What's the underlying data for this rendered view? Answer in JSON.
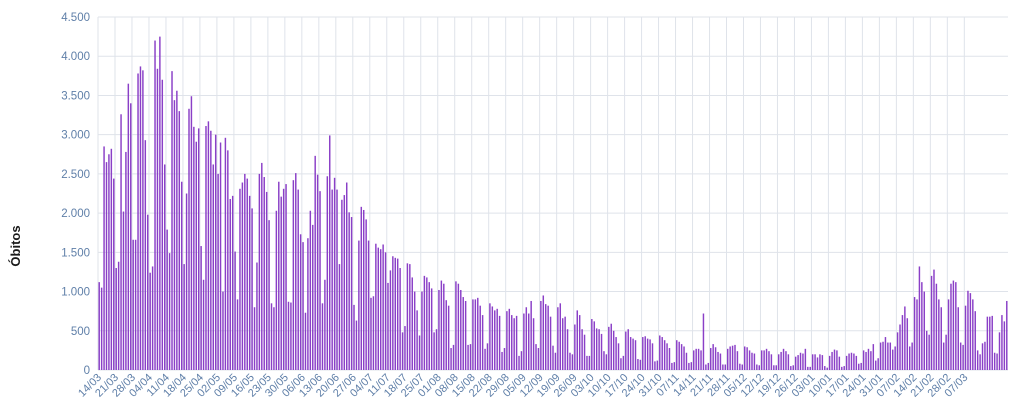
{
  "colors": {
    "bar": "#8a3fc7",
    "grid": "#dfe3ea",
    "axis_text": "#5f7fa8",
    "ylabel": "#1a1a1a",
    "background": "#ffffff"
  },
  "chart_data": {
    "type": "bar",
    "title": "",
    "xlabel": "",
    "ylabel": "Óbitos",
    "ylim": [
      0,
      4500
    ],
    "yticks": [
      0,
      500,
      1000,
      1500,
      2000,
      2500,
      3000,
      3500,
      4000,
      4500
    ],
    "ytick_labels": [
      "0",
      "500",
      "1.000",
      "1.500",
      "2.000",
      "2.500",
      "3.000",
      "3.500",
      "4.000",
      "4.500"
    ],
    "grid": "horizontal and vertical",
    "legend": "none",
    "x_start": "14/03",
    "x_end": "10/03",
    "xtick_labels": [
      "14/03",
      "21/03",
      "28/03",
      "04/04",
      "11/04",
      "18/04",
      "25/04",
      "02/05",
      "09/05",
      "16/05",
      "23/05",
      "30/05",
      "06/06",
      "13/06",
      "20/06",
      "27/06",
      "04/07",
      "11/07",
      "18/07",
      "25/07",
      "01/08",
      "08/08",
      "15/08",
      "22/08",
      "29/08",
      "05/09",
      "12/09",
      "19/09",
      "26/09",
      "03/10",
      "10/10",
      "17/10",
      "24/10",
      "31/10",
      "07/11",
      "14/11",
      "21/11",
      "28/11",
      "05/12",
      "12/12",
      "19/12",
      "26/12",
      "03/01",
      "10/01",
      "17/01",
      "24/01",
      "31/01",
      "07/02",
      "14/02",
      "21/02",
      "28/02",
      "07/03"
    ],
    "values": [
      1120,
      1050,
      2850,
      2650,
      2750,
      2820,
      2440,
      1300,
      1380,
      3260,
      2020,
      2780,
      3650,
      3400,
      1660,
      1660,
      3780,
      3870,
      3820,
      2930,
      1980,
      1240,
      1320,
      4200,
      3840,
      4250,
      3700,
      2620,
      1790,
      1490,
      3810,
      3440,
      3560,
      3300,
      2400,
      1350,
      2250,
      3330,
      3490,
      3100,
      2910,
      3080,
      1580,
      1150,
      3110,
      3170,
      3050,
      2620,
      3000,
      2500,
      2900,
      1000,
      2960,
      2800,
      2180,
      2220,
      1510,
      900,
      2310,
      2390,
      2500,
      2440,
      2220,
      2060,
      800,
      1370,
      2500,
      2640,
      2460,
      2270,
      1910,
      850,
      800,
      2030,
      2400,
      2210,
      2310,
      2370,
      870,
      860,
      2420,
      2510,
      2300,
      1730,
      1630,
      730,
      1680,
      2030,
      1850,
      2730,
      2490,
      2280,
      850,
      1150,
      2470,
      2990,
      2300,
      2450,
      2300,
      1350,
      2170,
      2230,
      2390,
      2010,
      1950,
      830,
      630,
      1650,
      2080,
      2040,
      1920,
      1650,
      920,
      940,
      1610,
      1560,
      1540,
      1600,
      1500,
      1110,
      1270,
      1450,
      1430,
      1420,
      1300,
      480,
      560,
      1360,
      1350,
      1180,
      1000,
      760,
      440,
      1000,
      1200,
      1180,
      1120,
      1040,
      480,
      520,
      1020,
      1140,
      1100,
      890,
      820,
      280,
      320,
      1130,
      1100,
      1020,
      930,
      880,
      320,
      330,
      900,
      900,
      920,
      820,
      700,
      270,
      340,
      850,
      810,
      760,
      780,
      690,
      230,
      280,
      750,
      780,
      700,
      660,
      690,
      180,
      240,
      720,
      800,
      720,
      880,
      660,
      330,
      280,
      880,
      950,
      840,
      820,
      680,
      310,
      220,
      800,
      850,
      660,
      680,
      520,
      220,
      200,
      580,
      760,
      700,
      520,
      450,
      180,
      180,
      650,
      620,
      530,
      520,
      460,
      240,
      200,
      550,
      590,
      500,
      420,
      340,
      150,
      180,
      490,
      520,
      420,
      400,
      380,
      140,
      130,
      420,
      430,
      400,
      390,
      340,
      110,
      120,
      440,
      420,
      380,
      340,
      280,
      90,
      100,
      380,
      360,
      330,
      300,
      220,
      90,
      100,
      250,
      270,
      270,
      250,
      720,
      70,
      90,
      280,
      330,
      290,
      230,
      210,
      70,
      70,
      270,
      300,
      310,
      320,
      240,
      80,
      70,
      300,
      290,
      250,
      220,
      210,
      70,
      60,
      250,
      250,
      270,
      240,
      200,
      60,
      60,
      200,
      230,
      270,
      240,
      200,
      50,
      60,
      170,
      190,
      220,
      210,
      270,
      40,
      40,
      200,
      200,
      160,
      200,
      190,
      50,
      30,
      180,
      230,
      260,
      250,
      170,
      40,
      50,
      180,
      210,
      220,
      210,
      180,
      80,
      90,
      250,
      230,
      270,
      240,
      330,
      120,
      150,
      350,
      360,
      420,
      350,
      350,
      260,
      300,
      480,
      580,
      700,
      810,
      660,
      300,
      350,
      930,
      900,
      1320,
      1120,
      1000,
      500,
      450,
      1200,
      1280,
      1100,
      900,
      800,
      350,
      450,
      900,
      1100,
      1140,
      1120,
      800,
      350,
      320,
      820,
      1010,
      980,
      900,
      750,
      250,
      200,
      340,
      360,
      680,
      680,
      690,
      220,
      210,
      480,
      700,
      620,
      880
    ]
  }
}
